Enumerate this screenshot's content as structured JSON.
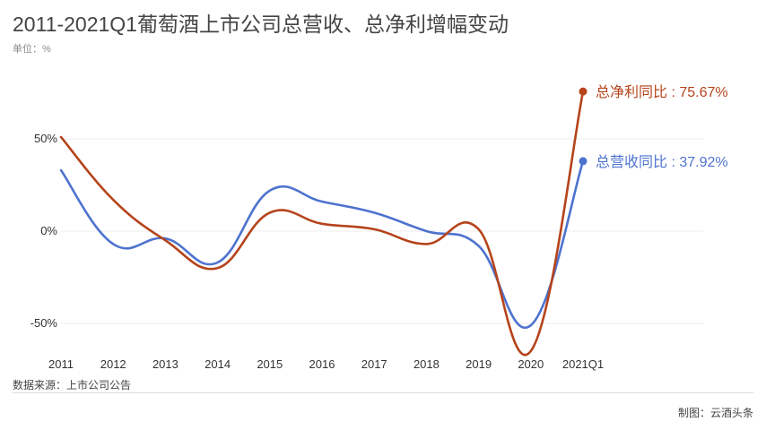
{
  "title": "2011-2021Q1葡萄酒上市公司总营收、总净利增幅变动",
  "unit": "单位：%",
  "source": "数据来源：上市公司公告",
  "credit": "制图：云酒头条",
  "chart_data": {
    "type": "line",
    "x": [
      "2011",
      "2012",
      "2013",
      "2014",
      "2015",
      "2016",
      "2017",
      "2018",
      "2019",
      "2020",
      "2021Q1"
    ],
    "y_ticks": [
      "50%",
      "0%",
      "-50%"
    ],
    "ylim": [
      -65,
      75
    ],
    "grid": true,
    "series": [
      {
        "name": "总营收同比",
        "color": "#4e73cf",
        "values": [
          33,
          -7,
          -4,
          -17,
          22,
          16,
          10,
          0,
          -8,
          -51,
          37.92
        ],
        "end_label": "总营收同比 : 37.92%"
      },
      {
        "name": "总净利同比",
        "color": "#b5431b",
        "values": [
          51,
          17,
          -5,
          -20,
          10,
          4,
          1,
          -7,
          1,
          -65,
          75.67
        ],
        "end_label": "总净利同比 : 75.67%"
      }
    ]
  }
}
